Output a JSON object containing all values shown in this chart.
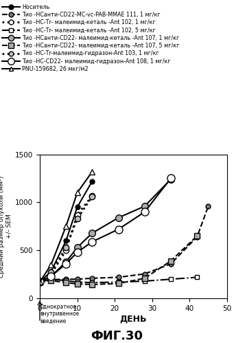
{
  "title": "ФИГ.30",
  "ylabel": "Средний размер опухоли (мм³)\n+/- SEM",
  "xlabel": "ДЕНЬ",
  "ylim": [
    0,
    1500
  ],
  "xlim": [
    0,
    50
  ],
  "yticks": [
    0,
    500,
    1000,
    1500
  ],
  "xticks": [
    0,
    10,
    20,
    30,
    40,
    50
  ],
  "annotation_text": "Однократное\nвнутривенное\nвведение",
  "series": [
    {
      "name": "Носитель",
      "x": [
        0,
        3,
        7,
        10,
        14
      ],
      "y": [
        170,
        280,
        600,
        950,
        1220
      ],
      "ls": "-",
      "marker": "o",
      "ms": 5,
      "mfc": "black",
      "mec": "black",
      "lw": 1.5
    },
    {
      "name": "111_1",
      "x": [
        0,
        3,
        7,
        10,
        14,
        21,
        28,
        35,
        42,
        45
      ],
      "y": [
        170,
        195,
        200,
        200,
        210,
        220,
        255,
        360,
        640,
        960
      ],
      "ls": "--",
      "marker": "o",
      "ms": 5,
      "mfc": "#777777",
      "mec": "black",
      "lw": 1.5
    },
    {
      "name": "102_1",
      "x": [
        0,
        3,
        7,
        10,
        14
      ],
      "y": [
        170,
        250,
        500,
        870,
        1070
      ],
      "ls": ":",
      "marker": "o",
      "ms": 6,
      "mfc": "white",
      "mec": "black",
      "lw": 2.0
    },
    {
      "name": "102_5",
      "x": [
        0,
        3,
        7,
        10,
        14,
        21,
        28,
        35,
        42
      ],
      "y": [
        170,
        200,
        185,
        170,
        165,
        170,
        180,
        200,
        220
      ],
      "ls": "-.",
      "marker": "s",
      "ms": 5,
      "mfc": "white",
      "mec": "black",
      "lw": 1.5
    },
    {
      "name": "107_1",
      "x": [
        0,
        3,
        7,
        10,
        14,
        21,
        28,
        35
      ],
      "y": [
        170,
        230,
        380,
        530,
        680,
        840,
        960,
        1240
      ],
      "ls": "-",
      "marker": "o",
      "ms": 7,
      "mfc": "#aaaaaa",
      "mec": "black",
      "lw": 1.5
    },
    {
      "name": "107_5",
      "x": [
        0,
        3,
        7,
        10,
        14,
        21,
        28,
        35,
        42
      ],
      "y": [
        170,
        185,
        165,
        150,
        145,
        155,
        210,
        390,
        650
      ],
      "ls": "--",
      "marker": "s",
      "ms": 6,
      "mfc": "#aaaaaa",
      "mec": "black",
      "lw": 1.5
    },
    {
      "name": "103_1",
      "x": [
        0,
        3,
        7,
        10,
        14
      ],
      "y": [
        170,
        270,
        530,
        830,
        1060
      ],
      "ls": ":",
      "marker": "o",
      "ms": 6,
      "mfc": "#bbbbbb",
      "mec": "black",
      "lw": 2.0
    },
    {
      "name": "108_1",
      "x": [
        0,
        3,
        7,
        10,
        14,
        21,
        28,
        35
      ],
      "y": [
        170,
        230,
        360,
        480,
        590,
        720,
        900,
        1250
      ],
      "ls": "-",
      "marker": "o",
      "ms": 8,
      "mfc": "white",
      "mec": "black",
      "lw": 1.5
    },
    {
      "name": "PNU",
      "x": [
        0,
        3,
        7,
        10,
        14
      ],
      "y": [
        170,
        350,
        750,
        1100,
        1320
      ],
      "ls": "-",
      "marker": "^",
      "ms": 6,
      "mfc": "white",
      "mec": "black",
      "lw": 1.5
    }
  ],
  "legend_specs": [
    {
      "ls": "-",
      "marker": "o",
      "ms": 5,
      "mfc": "black",
      "mec": "black",
      "lw": 1.5,
      "label": "Носитель"
    },
    {
      "ls": "--",
      "marker": "o",
      "ms": 5,
      "mfc": "#777777",
      "mec": "black",
      "lw": 1.5,
      "label": "Тио -НСанти-CD22-MC-vc-PAB-MMAE 111, 1 мг/кг"
    },
    {
      "ls": ":",
      "marker": "o",
      "ms": 5,
      "mfc": "white",
      "mec": "black",
      "lw": 2.0,
      "label": "Тио -НС-Тr- малеимид-кеталь -Ant 102, 1 мг/кг"
    },
    {
      "ls": "-.",
      "marker": "s",
      "ms": 5,
      "mfc": "white",
      "mec": "black",
      "lw": 1.5,
      "label": "Тио -НС-Тr- малеимид-кеталь -Ant 102, 5 мг/кг"
    },
    {
      "ls": "-",
      "marker": "o",
      "ms": 6,
      "mfc": "#aaaaaa",
      "mec": "black",
      "lw": 1.5,
      "label": "Тио -НСанти-CD22- малеимид-кеталь -Ant 107, 1 мг/кг"
    },
    {
      "ls": "--",
      "marker": "s",
      "ms": 6,
      "mfc": "#aaaaaa",
      "mec": "black",
      "lw": 1.5,
      "label": "Тио -НСанти-CD22- малеимид-кеталь -Ant 107, 5 мг/кг"
    },
    {
      "ls": ":",
      "marker": "o",
      "ms": 5,
      "mfc": "#bbbbbb",
      "mec": "black",
      "lw": 2.0,
      "label": "Тио -НС-Тr-малеимид-гидразон-Ant 103, 1 мг/кг"
    },
    {
      "ls": "-",
      "marker": "o",
      "ms": 7,
      "mfc": "white",
      "mec": "black",
      "lw": 1.5,
      "label": "Тио -НС-CD22- малеимид-гидразон-Ant 108, 1 мг/кг"
    },
    {
      "ls": "-",
      "marker": "^",
      "ms": 5,
      "mfc": "white",
      "mec": "black",
      "lw": 1.5,
      "label": "PNU-159682, 26 мкг/м2"
    }
  ]
}
